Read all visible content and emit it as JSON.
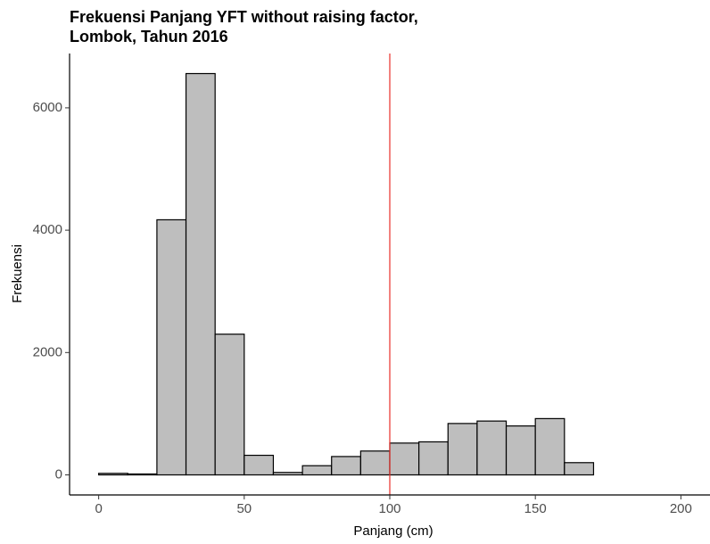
{
  "chart_data": {
    "type": "histogram",
    "title": [
      "Frekuensi Panjang YFT without raising factor,",
      "Lombok, Tahun 2016"
    ],
    "x_label": "Panjang (cm)",
    "y_label": "Frekuensi",
    "bins": [
      0,
      10,
      20,
      30,
      40,
      50,
      60,
      70,
      80,
      90,
      100,
      110,
      120,
      130,
      140,
      150,
      160,
      170,
      180,
      190,
      200
    ],
    "counts": [
      25,
      15,
      4170,
      6560,
      2300,
      320,
      40,
      150,
      300,
      390,
      520,
      540,
      840,
      880,
      800,
      920,
      200,
      0,
      0,
      0
    ],
    "color": "#bebebe",
    "edge_color": "#000000",
    "vline": 100,
    "vline_color": "#e8302a",
    "xlim": [
      -10,
      210
    ],
    "xticks": [
      0,
      50,
      100,
      150,
      200
    ],
    "ylim": [
      -328,
      6888
    ],
    "yticks": [
      0,
      2000,
      4000,
      6000
    ],
    "grid": false
  }
}
